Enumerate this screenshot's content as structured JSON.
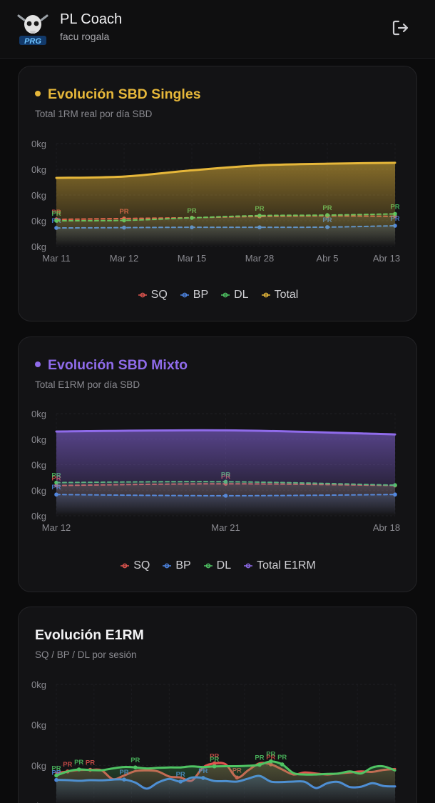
{
  "header": {
    "title": "PL Coach",
    "user": "facu rogala",
    "logo_text": "PRG"
  },
  "icons": {
    "logout": "logout-icon",
    "avatar": "skull-logo-icon"
  },
  "colors": {
    "sq": "#e0554f",
    "bp": "#4e86e4",
    "dl": "#4fc463",
    "singles_total": "#e6b73a",
    "mixto_total": "#8f6bea"
  },
  "tick_label": "0kg",
  "pr_label": "PR",
  "chart_data": [
    {
      "type": "line",
      "title": "Evolución SBD Singles",
      "subtitle": "Total 1RM real por día SBD",
      "categories": [
        "Mar 11",
        "Mar 12",
        "Mar 15",
        "Mar 28",
        "Abr 5",
        "Abr 13"
      ],
      "series": [
        {
          "name": "SQ",
          "values": [
            158,
            163,
            168,
            175,
            178,
            176
          ]
        },
        {
          "name": "BP",
          "values": [
            108,
            110,
            112,
            112,
            113,
            121
          ]
        },
        {
          "name": "DL",
          "values": [
            150,
            152,
            167,
            180,
            183,
            190
          ]
        },
        {
          "name": "Total",
          "values": [
            400,
            408,
            444,
            473,
            483,
            488
          ]
        }
      ],
      "pr_markers": {
        "SQ": [
          0,
          1
        ],
        "BP": [
          0,
          4,
          5
        ],
        "DL": [
          0,
          2,
          3,
          4,
          5
        ]
      },
      "yticks": 5,
      "ylim": [
        0,
        600
      ],
      "grid": true,
      "legend": "bottom"
    },
    {
      "type": "line",
      "title": "Evolución SBD Mixto",
      "subtitle": "Total E1RM por día SBD",
      "categories": [
        "Mar 12",
        "Mar 21",
        "Abr 18"
      ],
      "series": [
        {
          "name": "SQ",
          "values": [
            178,
            188,
            178
          ]
        },
        {
          "name": "BP",
          "values": [
            125,
            118,
            125
          ]
        },
        {
          "name": "DL",
          "values": [
            195,
            200,
            180
          ]
        },
        {
          "name": "Total E1RM",
          "values": [
            495,
            502,
            478
          ]
        }
      ],
      "pr_markers": {
        "SQ": [
          0,
          1
        ],
        "BP": [
          0
        ],
        "DL": [
          0,
          1
        ]
      },
      "yticks": 5,
      "ylim": [
        0,
        600
      ],
      "grid": true,
      "legend": "bottom"
    },
    {
      "type": "line",
      "title": "Evolución E1RM",
      "subtitle": "SQ / BP / DL por sesión",
      "series": [
        {
          "name": "SQ",
          "points": [
            [
              0,
              162
            ],
            [
              1,
              170
            ],
            [
              2,
              177
            ],
            [
              3,
              178
            ],
            [
              4,
              176
            ],
            [
              5,
              132
            ],
            [
              6,
              150
            ],
            [
              7,
              172
            ],
            [
              8,
              175
            ],
            [
              9,
              170
            ],
            [
              10,
              145
            ],
            [
              11,
              140
            ],
            [
              12,
              125
            ],
            [
              13,
              190
            ],
            [
              14,
              210
            ],
            [
              15,
              205
            ],
            [
              16,
              140
            ],
            [
              17,
              176
            ],
            [
              18,
              210
            ],
            [
              19,
              205
            ],
            [
              20,
              180
            ],
            [
              21,
              155
            ],
            [
              22,
              165
            ],
            [
              23,
              160
            ],
            [
              24,
              155
            ],
            [
              25,
              160
            ],
            [
              26,
              165
            ],
            [
              27,
              170
            ],
            [
              28,
              168
            ],
            [
              29,
              178
            ],
            [
              30,
              182
            ]
          ]
        },
        {
          "name": "BP",
          "points": [
            [
              0,
              128
            ],
            [
              1,
              127
            ],
            [
              2,
              124
            ],
            [
              3,
              127
            ],
            [
              4,
              126
            ],
            [
              5,
              130
            ],
            [
              6,
              130
            ],
            [
              7,
              115
            ],
            [
              8,
              85
            ],
            [
              9,
              115
            ],
            [
              10,
              133
            ],
            [
              11,
              120
            ],
            [
              12,
              140
            ],
            [
              13,
              138
            ],
            [
              14,
              123
            ],
            [
              15,
              122
            ],
            [
              16,
              120
            ],
            [
              17,
              135
            ],
            [
              18,
              148
            ],
            [
              19,
              120
            ],
            [
              20,
              118
            ],
            [
              21,
              120
            ],
            [
              22,
              119
            ],
            [
              23,
              88
            ],
            [
              24,
              112
            ],
            [
              25,
              118
            ],
            [
              26,
              93
            ],
            [
              27,
              95
            ],
            [
              28,
              112
            ],
            [
              29,
              98
            ],
            [
              30,
              96
            ]
          ]
        },
        {
          "name": "DL",
          "points": [
            [
              0,
              150
            ],
            [
              1,
              170
            ],
            [
              2,
              180
            ],
            [
              3,
              177
            ],
            [
              4,
              176
            ],
            [
              5,
              185
            ],
            [
              6,
              192
            ],
            [
              7,
              190
            ],
            [
              8,
              185
            ],
            [
              9,
              188
            ],
            [
              10,
              190
            ],
            [
              11,
              190
            ],
            [
              12,
              195
            ],
            [
              13,
              192
            ],
            [
              14,
              195
            ],
            [
              15,
              196
            ],
            [
              16,
              196
            ],
            [
              17,
              198
            ],
            [
              18,
              203
            ],
            [
              19,
              220
            ],
            [
              20,
              205
            ],
            [
              21,
              162
            ],
            [
              22,
              155
            ],
            [
              23,
              155
            ],
            [
              24,
              158
            ],
            [
              25,
              160
            ],
            [
              26,
              170
            ],
            [
              27,
              160
            ],
            [
              28,
              190
            ],
            [
              29,
              195
            ],
            [
              30,
              175
            ]
          ]
        }
      ],
      "pr_markers": {
        "SQ": [
          1,
          3,
          14,
          16,
          19
        ],
        "BP": [
          0,
          6,
          11,
          13
        ],
        "DL": [
          0,
          2,
          7,
          14,
          18,
          19,
          20
        ]
      },
      "yticks": 4,
      "ylim": [
        0,
        600
      ],
      "grid": true
    }
  ]
}
